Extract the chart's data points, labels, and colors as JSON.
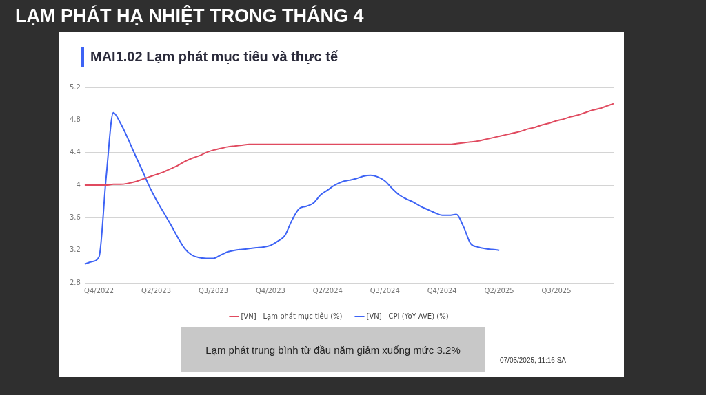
{
  "chart_data": {
    "type": "line",
    "title": "LẠM PHÁT HẠ NHIỆT TRONG THÁNG 4",
    "subtitle": "MAI1.02 Lạm phát mục tiêu và thực tế",
    "categories": [
      null,
      null,
      "Q4/2022",
      null,
      null,
      null,
      null,
      null,
      null,
      null,
      "Q2/2023",
      null,
      null,
      null,
      null,
      null,
      null,
      null,
      "Q3/2023",
      null,
      null,
      null,
      null,
      null,
      null,
      null,
      "Q4/2023",
      null,
      null,
      null,
      null,
      null,
      null,
      null,
      "Q2/2024",
      null,
      null,
      null,
      null,
      null,
      null,
      null,
      "Q3/2024",
      null,
      null,
      null,
      null,
      null,
      null,
      null,
      "Q4/2024",
      null,
      null,
      null,
      null,
      null,
      null,
      null,
      "Q2/2025",
      null,
      null,
      null,
      null,
      null,
      null,
      null,
      "Q3/2025",
      null,
      null,
      null,
      null,
      null,
      null,
      null,
      null
    ],
    "series": [
      {
        "name": "[VN] - Lạm phát mục tiêu (%)",
        "color": "#e04a5f",
        "values": [
          4.0,
          4.0,
          4.0,
          4.0,
          4.01,
          4.01,
          4.02,
          4.04,
          4.07,
          4.1,
          4.13,
          4.16,
          4.2,
          4.24,
          4.29,
          4.33,
          4.36,
          4.4,
          4.43,
          4.45,
          4.47,
          4.48,
          4.49,
          4.5,
          4.5,
          4.5,
          4.5,
          4.5,
          4.5,
          4.5,
          4.5,
          4.5,
          4.5,
          4.5,
          4.5,
          4.5,
          4.5,
          4.5,
          4.5,
          4.5,
          4.5,
          4.5,
          4.5,
          4.5,
          4.5,
          4.5,
          4.5,
          4.5,
          4.5,
          4.5,
          4.5,
          4.5,
          4.51,
          4.52,
          4.53,
          4.54,
          4.56,
          4.58,
          4.6,
          4.62,
          4.64,
          4.66,
          4.69,
          4.71,
          4.74,
          4.76,
          4.79,
          4.81,
          4.84,
          4.86,
          4.89,
          4.92,
          4.94,
          4.97,
          5.0
        ]
      },
      {
        "name": "[VN] - CPI (YoY AVE) (%)",
        "color": "#3d63f5",
        "values": [
          3.03,
          3.06,
          3.12,
          4.1,
          4.89,
          4.76,
          4.58,
          4.38,
          4.19,
          3.99,
          3.82,
          3.67,
          3.52,
          3.36,
          3.22,
          3.14,
          3.11,
          3.1,
          3.1,
          3.14,
          3.18,
          3.2,
          3.21,
          3.22,
          3.23,
          3.24,
          3.26,
          3.31,
          3.38,
          3.57,
          3.71,
          3.74,
          3.78,
          3.88,
          3.94,
          4.0,
          4.04,
          4.06,
          4.08,
          4.11,
          4.12,
          4.1,
          4.05,
          3.96,
          3.88,
          3.83,
          3.79,
          3.74,
          3.7,
          3.66,
          3.63,
          3.63,
          3.64,
          3.49,
          3.28,
          3.24,
          3.22,
          3.21,
          3.2,
          null,
          null,
          null,
          null,
          null,
          null,
          null,
          null,
          null,
          null,
          null,
          null,
          null,
          null,
          null,
          null
        ]
      }
    ],
    "ylim": [
      2.8,
      5.2
    ],
    "yticks": [
      2.8,
      3.2,
      3.6,
      4,
      4.4,
      4.8,
      5.2
    ],
    "grid": "y",
    "legend": "bottom",
    "marker": "none",
    "line_style": "solid",
    "annotations": [
      "Lạm phát trung bình từ đầu năm giảm xuống mức 3.2%",
      "07/05/2025, 11:16 SA"
    ]
  }
}
